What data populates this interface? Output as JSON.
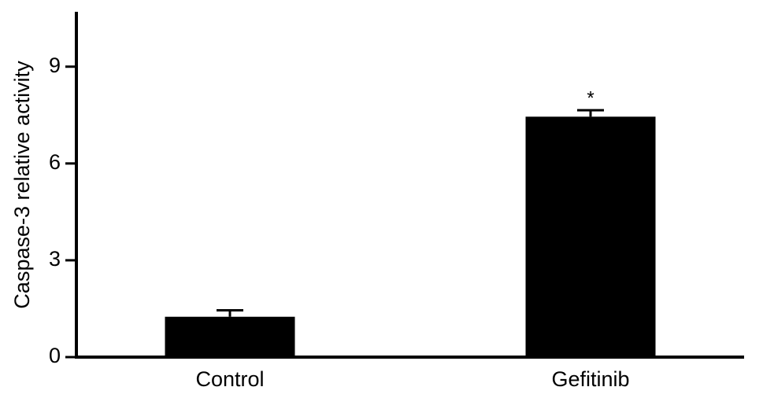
{
  "chart_data": {
    "type": "bar",
    "y_label": "Caspase-3 relative activity",
    "categories": [
      "Control",
      "Gefitinib"
    ],
    "values": [
      1.25,
      7.45
    ],
    "errors": [
      0.2,
      0.2
    ],
    "significance": [
      null,
      "*"
    ],
    "color": "#000000",
    "ylim": [
      0,
      10.7
    ],
    "yticks": [
      0,
      3,
      6,
      9
    ]
  }
}
